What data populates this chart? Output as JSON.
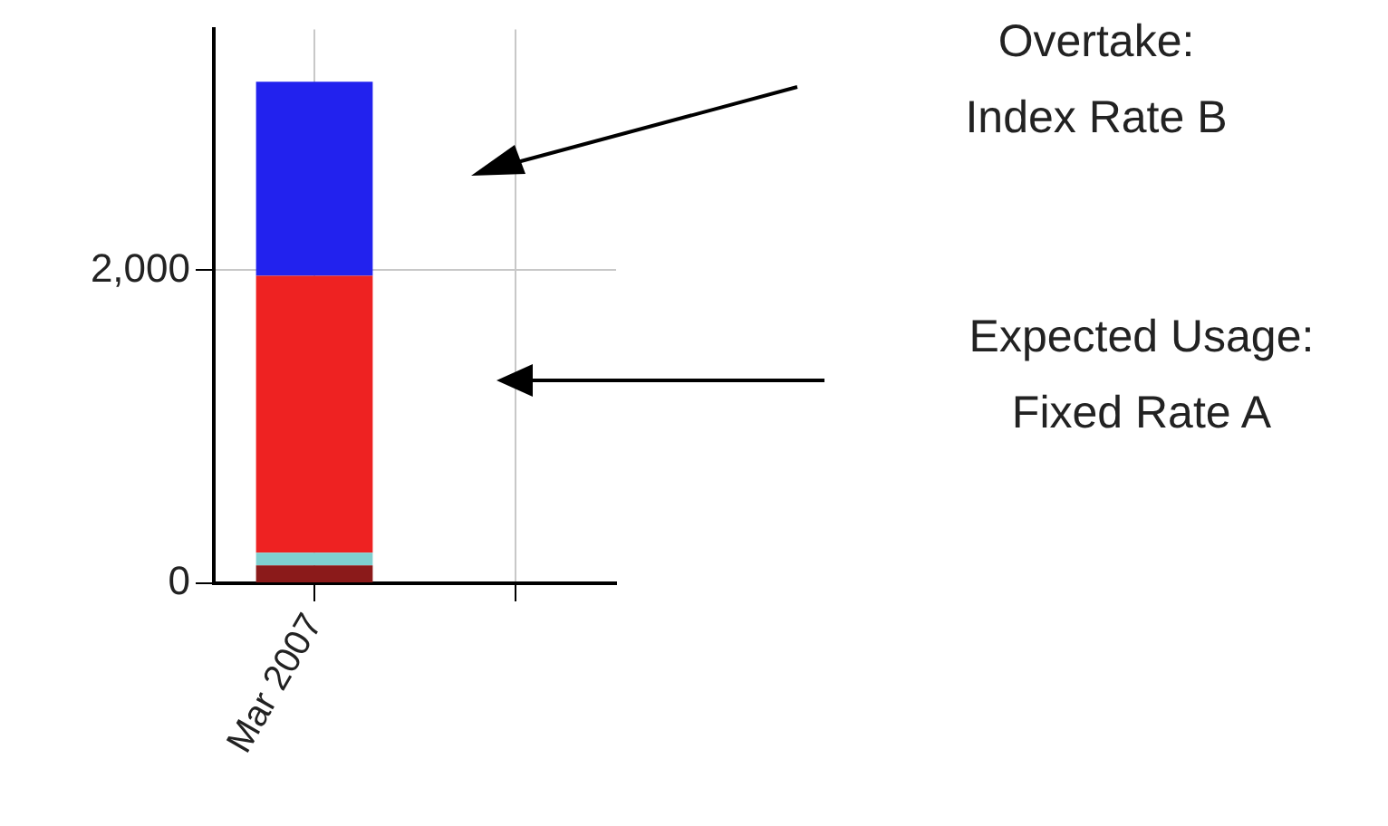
{
  "chart_data": {
    "type": "bar",
    "stacked": true,
    "categories": [
      "Mar 2007",
      null
    ],
    "series": [
      {
        "color": "#8b1a1a",
        "values": [
          115,
          null
        ]
      },
      {
        "color": "#7fd0d0",
        "values": [
          80,
          null
        ]
      },
      {
        "color": "#ee2222",
        "values": [
          1770,
          null
        ]
      },
      {
        "color": "#2222ee",
        "values": [
          1240,
          null
        ]
      }
    ],
    "ylim": [
      0,
      3540
    ],
    "yticks": [
      0,
      {
        "value": 2000,
        "label": "2,000"
      }
    ],
    "grid": true,
    "legend": false,
    "annotations": [
      "Overtake:\nIndex Rate B",
      "Expected Usage:\nFixed Rate A"
    ]
  }
}
